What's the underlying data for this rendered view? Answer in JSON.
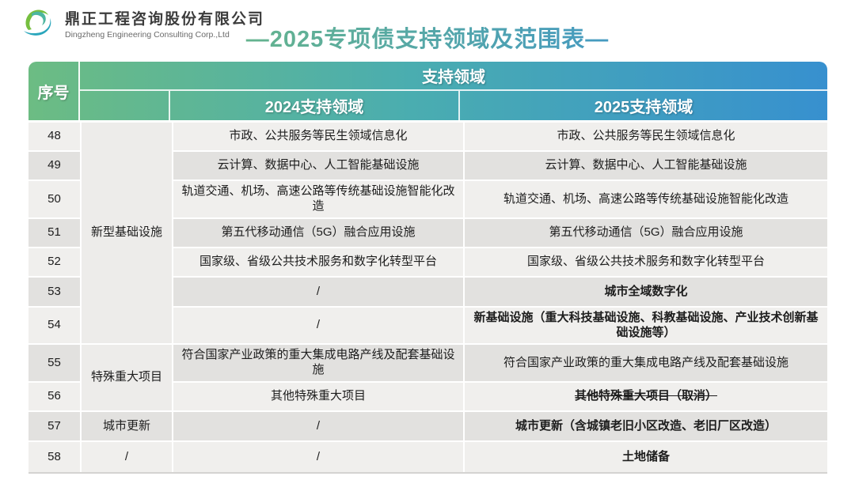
{
  "logo": {
    "company_zh": "鼎正工程咨询股份有限公司",
    "company_en": "Dingzheng Engineering Consulting Corp.,Ltd",
    "colors": {
      "green": "#76bf3f",
      "teal": "#2aa6bc"
    }
  },
  "title": {
    "text": "—2025专项债支持领域及范围表—",
    "gradient_from": "#6fbc7e",
    "gradient_to": "#3b92d1"
  },
  "table": {
    "header": {
      "col_no": "序号",
      "support_area": "支持领域",
      "col_2024": "2024支持领域",
      "col_2025": "2025支持领域",
      "gradient_from": "#6cbc83",
      "gradient_mid": "#4aadb0",
      "gradient_to": "#3790cf"
    },
    "colors": {
      "row_light": "#f0efed",
      "row_dark": "#e2e1df",
      "red": "#c00000",
      "text": "#1d1d1d"
    },
    "rows": [
      {
        "no": "48",
        "category": "新型基础设施",
        "category_rowspan": 7,
        "y2024": "市政、公共服务等民生领域信息化",
        "y2025": "市政、公共服务等民生领域信息化",
        "red": false,
        "strike": false
      },
      {
        "no": "49",
        "y2024": "云计算、数据中心、人工智能基础设施",
        "y2025": "云计算、数据中心、人工智能基础设施",
        "red": false,
        "strike": false
      },
      {
        "no": "50",
        "y2024": "轨道交通、机场、高速公路等传统基础设施智能化改造",
        "y2025": "轨道交通、机场、高速公路等传统基础设施智能化改造",
        "red": false,
        "strike": false
      },
      {
        "no": "51",
        "y2024": "第五代移动通信（5G）融合应用设施",
        "y2025": "第五代移动通信（5G）融合应用设施",
        "red": false,
        "strike": false
      },
      {
        "no": "52",
        "y2024": "国家级、省级公共技术服务和数字化转型平台",
        "y2025": "国家级、省级公共技术服务和数字化转型平台",
        "red": false,
        "strike": false
      },
      {
        "no": "53",
        "y2024": "/",
        "y2025": "城市全域数字化",
        "red": true,
        "strike": false
      },
      {
        "no": "54",
        "y2024": "/",
        "y2025": "新基础设施（重大科技基础设施、科教基础设施、产业技术创新基础设施等）",
        "red": true,
        "strike": false
      },
      {
        "no": "55",
        "category": "特殊重大项目",
        "category_rowspan": 2,
        "y2024": "符合国家产业政策的重大集成电路产线及配套基础设施",
        "y2025": "符合国家产业政策的重大集成电路产线及配套基础设施",
        "red": false,
        "strike": false
      },
      {
        "no": "56",
        "y2024": "其他特殊重大项目",
        "y2025": "其他特殊重大项目（取消）",
        "red": true,
        "strike": true
      },
      {
        "no": "57",
        "category": "城市更新",
        "category_rowspan": 1,
        "y2024": "/",
        "y2025": "城市更新（含城镇老旧小区改造、老旧厂区改造）",
        "red": true,
        "strike": false
      },
      {
        "no": "58",
        "category": "/",
        "category_rowspan": 1,
        "y2024": "/",
        "y2025": "土地储备",
        "red": true,
        "strike": false
      }
    ]
  }
}
